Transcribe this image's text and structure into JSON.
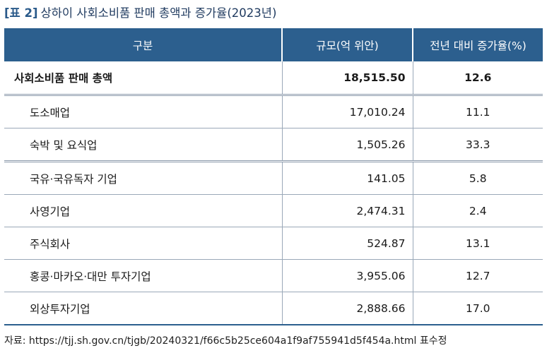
{
  "title": {
    "tag": "[표 2]",
    "text": "상하이 사회소비품 판매 총액과 증가율(2023년)"
  },
  "table": {
    "headers": [
      "구분",
      "규모(억 위안)",
      "전년 대비 증가율(%)"
    ],
    "rows": [
      {
        "label": "사회소비품 판매 총액",
        "value": "18,515.50",
        "growth": "12.6"
      },
      {
        "label": "도소매업",
        "value": "17,010.24",
        "growth": "11.1"
      },
      {
        "label": "숙박 및 요식업",
        "value": "1,505.26",
        "growth": "33.3"
      },
      {
        "label": "국유·국유독자 기업",
        "value": "141.05",
        "growth": "5.8"
      },
      {
        "label": "사영기업",
        "value": "2,474.31",
        "growth": "2.4"
      },
      {
        "label": "주식회사",
        "value": "524.87",
        "growth": "13.1"
      },
      {
        "label": "홍콩·마카오·대만 투자기업",
        "value": "3,955.06",
        "growth": "12.7"
      },
      {
        "label": "외상투자기업",
        "value": "2,888.66",
        "growth": "17.0"
      }
    ]
  },
  "source": "자료: https://tjj.sh.gov.cn/tjgb/20240321/f66c5b25ce604a1f9af755941d5f454a.html 표수정"
}
